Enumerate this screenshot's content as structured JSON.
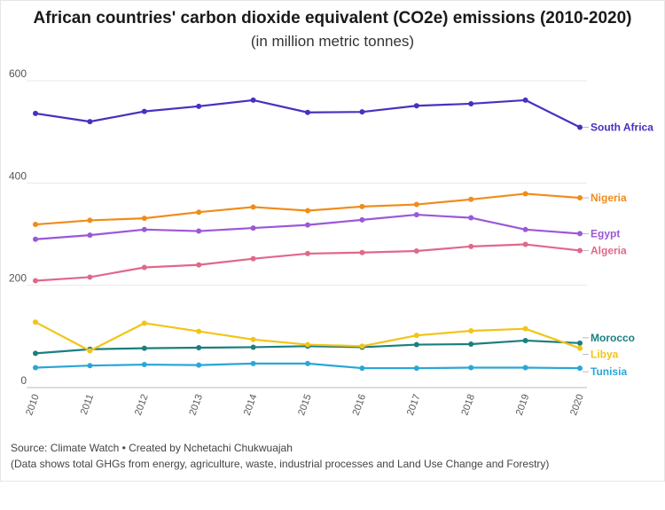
{
  "title": "African countries' carbon dioxide equivalent (CO2e) emissions (2010-2020)",
  "subtitle": "(in million metric tonnes)",
  "source": "Source: Climate Watch • Created by Nchetachi Chukwuajah",
  "note": "(Data shows total GHGs from energy, agriculture, waste, industrial processes and Land Use Change and Forestry)",
  "chart_data": {
    "type": "line",
    "x": [
      2010,
      2011,
      2012,
      2013,
      2014,
      2015,
      2016,
      2017,
      2018,
      2019,
      2020
    ],
    "ylim": [
      0,
      600
    ],
    "yticks": [
      0,
      200,
      400,
      600
    ],
    "grid": true,
    "legend": "labels at line ends",
    "series": [
      {
        "name": "South Africa",
        "color": "#4b2fc0",
        "values": [
          536,
          520,
          540,
          550,
          562,
          538,
          539,
          551,
          555,
          562,
          509
        ]
      },
      {
        "name": "Nigeria",
        "color": "#f08c1a",
        "values": [
          319,
          327,
          331,
          343,
          353,
          346,
          354,
          358,
          368,
          379,
          371
        ]
      },
      {
        "name": "Egypt",
        "color": "#9a58d8",
        "values": [
          290,
          298,
          309,
          306,
          312,
          318,
          328,
          338,
          332,
          309,
          301
        ]
      },
      {
        "name": "Algeria",
        "color": "#e0688a",
        "values": [
          209,
          216,
          235,
          240,
          252,
          262,
          264,
          267,
          276,
          280,
          268
        ]
      },
      {
        "name": "Morocco",
        "color": "#1a7f7f",
        "values": [
          67,
          75,
          77,
          78,
          79,
          81,
          79,
          84,
          85,
          92,
          87
        ]
      },
      {
        "name": "Libya",
        "color": "#f2c418",
        "values": [
          128,
          72,
          126,
          110,
          94,
          84,
          81,
          102,
          111,
          115,
          77
        ]
      },
      {
        "name": "Tunisia",
        "color": "#2aa7d6",
        "values": [
          39,
          43,
          45,
          44,
          47,
          47,
          38,
          38,
          39,
          39,
          38
        ]
      }
    ]
  }
}
